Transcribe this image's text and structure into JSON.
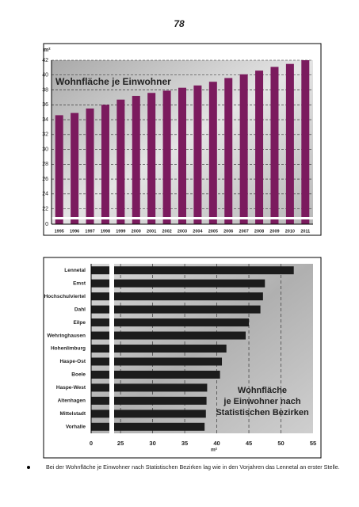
{
  "page_number": "78",
  "chart_data": [
    {
      "type": "bar",
      "title": "Wohnfläche je Einwohner",
      "y_unit": "m²",
      "categories": [
        "1995",
        "1996",
        "1997",
        "1998",
        "1999",
        "2000",
        "2001",
        "2002",
        "2003",
        "2004",
        "2005",
        "2006",
        "2007",
        "2008",
        "2009",
        "2010",
        "2011"
      ],
      "values": [
        34.6,
        34.9,
        35.5,
        36.0,
        36.7,
        37.2,
        37.6,
        37.9,
        38.3,
        38.6,
        39.1,
        39.6,
        40.1,
        40.6,
        41.1,
        41.5,
        42.0
      ],
      "color": "#7b1b5e",
      "ylim": [
        0,
        42
      ],
      "axis_break": [
        0,
        21
      ],
      "yticks": [
        0,
        22,
        24,
        26,
        28,
        30,
        32,
        34,
        36,
        38,
        40,
        42
      ],
      "grid": true
    },
    {
      "type": "hbar",
      "title": [
        "Wohnfläche",
        "je Einwohner nach",
        "Statistischen Bezirken"
      ],
      "x_unit": "m²",
      "categories": [
        "Lennetal",
        "Emst",
        "Hochschulviertel",
        "Dahl",
        "Eilpe",
        "Wehringhausen",
        "Hohenlimburg",
        "Haspe-Ost",
        "Boele",
        "Haspe-West",
        "Altenhagen",
        "Mittelstadt",
        "Vorhalle"
      ],
      "values": [
        52.0,
        47.5,
        47.2,
        46.8,
        45.0,
        44.5,
        41.5,
        40.8,
        40.5,
        38.5,
        38.4,
        38.3,
        38.1
      ],
      "color": "#1c1c1c",
      "xlim": [
        0,
        55
      ],
      "axis_break": [
        0,
        24
      ],
      "xticks": [
        0,
        25,
        30,
        35,
        40,
        45,
        50,
        55
      ],
      "grid": true
    }
  ],
  "bullets": [
    "Bei der Wohnfläche je Einwohner nach Statistischen Bezirken lag wie in den Vorjahren das Lennetal an erster Stelle."
  ]
}
